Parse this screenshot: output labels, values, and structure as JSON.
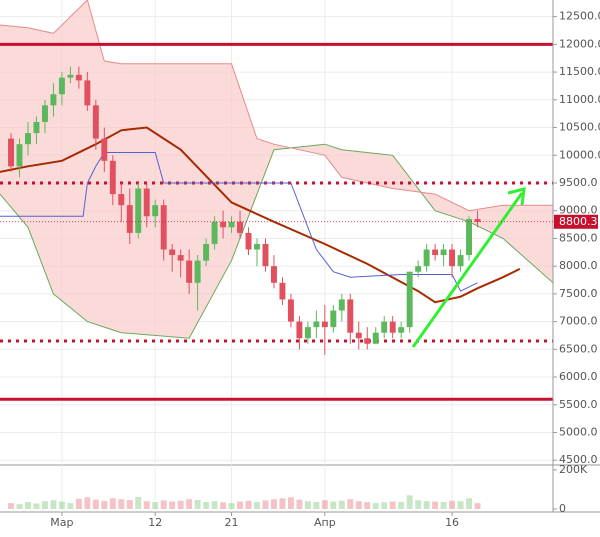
{
  "chart_data": {
    "type": "candlestick",
    "xlim": [
      -1.3,
      63.9
    ],
    "xticks": [
      {
        "value": 6,
        "label": "Мар"
      },
      {
        "value": 17,
        "label": "12"
      },
      {
        "value": 26,
        "label": "21"
      },
      {
        "value": 37,
        "label": "Апр"
      },
      {
        "value": 52,
        "label": "16"
      }
    ],
    "ylim": [
      4450,
      12800
    ],
    "yticks": [
      {
        "value": 4500,
        "label": "4500.0"
      },
      {
        "value": 5000,
        "label": "5000.0"
      },
      {
        "value": 5500,
        "label": "5500.0"
      },
      {
        "value": 6000,
        "label": "6000.0"
      },
      {
        "value": 6500,
        "label": "6500.0"
      },
      {
        "value": 7000,
        "label": "7000.0"
      },
      {
        "value": 7500,
        "label": "7500.0"
      },
      {
        "value": 8000,
        "label": "8000.0"
      },
      {
        "value": 8500,
        "label": "8500.0"
      },
      {
        "value": 9000,
        "label": "9000.0"
      },
      {
        "value": 9500,
        "label": "9500.0"
      },
      {
        "value": 10000,
        "label": "10000.0"
      },
      {
        "value": 10500,
        "label": "10500.0"
      },
      {
        "value": 11000,
        "label": "11000.0"
      },
      {
        "value": 11500,
        "label": "11500.0"
      },
      {
        "value": 12000,
        "label": "12000.0"
      },
      {
        "value": 12500,
        "label": "12500.0"
      }
    ],
    "grid": true,
    "up_color": "#5cb85c",
    "down_color": "#e0505e",
    "candles": {
      "x": [
        0,
        1,
        2,
        3,
        4,
        5,
        6,
        7,
        8,
        9,
        10,
        11,
        12,
        13,
        14,
        15,
        16,
        17,
        18,
        19,
        20,
        21,
        22,
        23,
        24,
        25,
        26,
        27,
        28,
        29,
        30,
        31,
        32,
        33,
        34,
        35,
        36,
        37,
        38,
        39,
        40,
        41,
        42,
        43,
        44,
        45,
        46,
        47,
        48,
        49,
        50,
        51,
        52,
        53,
        54,
        55
      ],
      "open": [
        10300,
        9800,
        10200,
        10400,
        10600,
        10900,
        11100,
        11400,
        11450,
        11350,
        10900,
        10300,
        9900,
        9300,
        9100,
        8600,
        9400,
        8900,
        9100,
        8300,
        8200,
        8100,
        7700,
        8100,
        8400,
        8800,
        8700,
        8800,
        8600,
        8300,
        8400,
        8000,
        7700,
        7400,
        7000,
        6700,
        6900,
        7000,
        6900,
        7200,
        7400,
        6800,
        6700,
        6600,
        6800,
        7000,
        6800,
        6900,
        7900,
        8000,
        8300,
        8200,
        8300,
        8000,
        8200,
        8850
      ],
      "high": [
        10400,
        10300,
        10600,
        10700,
        11000,
        11300,
        11500,
        11600,
        11600,
        11500,
        11000,
        10500,
        10000,
        9500,
        9400,
        9500,
        9500,
        9200,
        9200,
        8400,
        8300,
        8300,
        8200,
        8500,
        8900,
        9000,
        8900,
        9000,
        8700,
        8500,
        8500,
        8200,
        7800,
        7500,
        7100,
        7000,
        7200,
        7300,
        7300,
        7500,
        7500,
        7000,
        6900,
        6900,
        7100,
        7100,
        7000,
        7900,
        8100,
        8400,
        8400,
        8400,
        8400,
        8300,
        8900,
        9000
      ],
      "low": [
        9700,
        9600,
        10000,
        10200,
        10400,
        10700,
        10900,
        11300,
        11200,
        10800,
        10100,
        9700,
        9100,
        8800,
        8400,
        8500,
        8700,
        8700,
        8100,
        7900,
        7800,
        7500,
        7200,
        8000,
        8300,
        8500,
        8600,
        8500,
        8200,
        8000,
        7900,
        7600,
        7300,
        6900,
        6500,
        6600,
        6700,
        6400,
        6800,
        7000,
        6600,
        6500,
        6500,
        6600,
        6700,
        6700,
        6700,
        6800,
        7800,
        7900,
        8100,
        8000,
        7800,
        7900,
        8100,
        8700
      ],
      "close": [
        9800,
        10200,
        10400,
        10600,
        10900,
        11100,
        11400,
        11450,
        11350,
        10900,
        10300,
        9900,
        9300,
        9100,
        8600,
        9400,
        8900,
        9100,
        8300,
        8200,
        8100,
        7700,
        8100,
        8400,
        8800,
        8700,
        8800,
        8600,
        8300,
        8400,
        8000,
        7700,
        7400,
        7000,
        6700,
        6900,
        7000,
        6900,
        7200,
        7400,
        6800,
        6700,
        6600,
        6800,
        7000,
        6800,
        6900,
        7900,
        8000,
        8300,
        8200,
        8300,
        8000,
        8200,
        8850,
        8800
      ],
      "volume": [
        30000,
        25000,
        35000,
        28000,
        40000,
        45000,
        38000,
        30000,
        52000,
        60000,
        48000,
        42000,
        55000,
        50000,
        46000,
        62000,
        40000,
        35000,
        44000,
        38000,
        42000,
        50000,
        46000,
        36000,
        40000,
        34000,
        30000,
        38000,
        42000,
        36000,
        44000,
        50000,
        55000,
        60000,
        48000,
        40000,
        36000,
        45000,
        38000,
        42000,
        50000,
        40000,
        35000,
        30000,
        34000,
        38000,
        36000,
        70000,
        45000,
        40000,
        38000,
        36000,
        42000,
        40000,
        55000,
        30000
      ]
    },
    "vlim": [
      0,
      225000
    ],
    "vticks": [
      0,
      {
        "value": 200000,
        "label": "200K"
      }
    ],
    "lines": [
      {
        "color": "#a52a00",
        "width": 2,
        "x": [
          -1.3,
          2,
          6,
          10,
          13,
          16,
          20,
          26,
          31,
          37,
          42,
          48,
          50,
          53,
          55,
          58,
          60
        ],
        "values": [
          9700,
          9800,
          9900,
          10200,
          10450,
          10500,
          10100,
          9150,
          8800,
          8400,
          8040,
          7550,
          7350,
          7450,
          7600,
          7800,
          7950
        ]
      },
      {
        "color": "#5560d0",
        "width": 1,
        "x": [
          -1.3,
          8.5,
          9,
          10,
          11,
          17,
          18,
          27,
          28,
          33,
          36,
          38,
          40,
          46,
          52,
          53,
          55
        ],
        "values": [
          8900,
          8900,
          9500,
          9800,
          10050,
          10050,
          9500,
          9500,
          9500,
          9500,
          8300,
          7900,
          7800,
          7850,
          7850,
          7550,
          7700
        ]
      }
    ],
    "cloud": {
      "x": [
        -1.3,
        2,
        5,
        9,
        11,
        13,
        21,
        26,
        29,
        31,
        37,
        39,
        45,
        50,
        54,
        58,
        63.9
      ],
      "span_a": [
        9300,
        8700,
        7500,
        7000,
        6900,
        6800,
        6700,
        8100,
        9300,
        10100,
        10200,
        10100,
        10000,
        9000,
        8800,
        8500,
        7700
      ],
      "span_b": [
        12350,
        12300,
        12200,
        12800,
        11700,
        11650,
        11650,
        11650,
        10300,
        10200,
        10000,
        9600,
        9400,
        9300,
        9000,
        9100,
        9100
      ],
      "color_a": "#6aaa5a",
      "color_b": "#e88a8a",
      "fill": "#f9caca"
    },
    "levels": [
      {
        "value": 12000,
        "style": "solid"
      },
      {
        "value": 9500,
        "style": "dotted"
      },
      {
        "value": 6650,
        "style": "dotted"
      },
      {
        "value": 5600,
        "style": "solid"
      }
    ],
    "level_color": "#c8102e",
    "last_price": 8800.3
  }
}
